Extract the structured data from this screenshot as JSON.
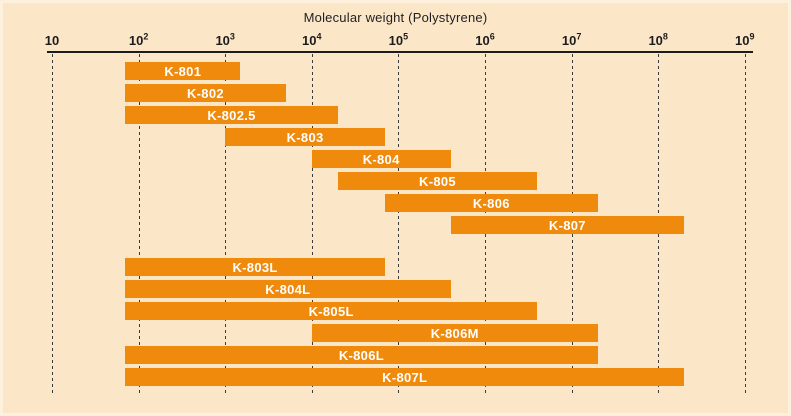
{
  "colors": {
    "background": "#fce6c8",
    "bar": "#ef8a0c",
    "bar_label": "#ffffff",
    "axis": "#1c1c1c",
    "gridline": "#3b3b3b"
  },
  "chart_data": {
    "type": "bar",
    "variant": "horizontal-range-bars",
    "title": "Molecular weight (Polystyrene)",
    "x_axis": {
      "scale": "log",
      "min": 10,
      "max": 1000000000,
      "tick_exponents": [
        1,
        2,
        3,
        4,
        5,
        6,
        7,
        8,
        9
      ],
      "tick_base": "10",
      "grid": "dashed-vertical-per-decade"
    },
    "legend": "none",
    "bars": [
      {
        "label": "K-801",
        "mw_min": 70,
        "mw_max": 1500,
        "group": 0
      },
      {
        "label": "K-802",
        "mw_min": 70,
        "mw_max": 5000,
        "group": 0
      },
      {
        "label": "K-802.5",
        "mw_min": 70,
        "mw_max": 20000,
        "group": 0
      },
      {
        "label": "K-803",
        "mw_min": 1000,
        "mw_max": 70000,
        "group": 0
      },
      {
        "label": "K-804",
        "mw_min": 10000,
        "mw_max": 400000,
        "group": 0
      },
      {
        "label": "K-805",
        "mw_min": 20000,
        "mw_max": 4000000,
        "group": 0
      },
      {
        "label": "K-806",
        "mw_min": 70000,
        "mw_max": 20000000,
        "group": 0
      },
      {
        "label": "K-807",
        "mw_min": 400000,
        "mw_max": 200000000,
        "group": 0
      },
      {
        "label": "K-803L",
        "mw_min": 70,
        "mw_max": 70000,
        "group": 1
      },
      {
        "label": "K-804L",
        "mw_min": 70,
        "mw_max": 400000,
        "group": 1
      },
      {
        "label": "K-805L",
        "mw_min": 70,
        "mw_max": 4000000,
        "group": 1
      },
      {
        "label": "K-806M",
        "mw_min": 10000,
        "mw_max": 20000000,
        "group": 1
      },
      {
        "label": "K-806L",
        "mw_min": 70,
        "mw_max": 20000000,
        "group": 1
      },
      {
        "label": "K-807L",
        "mw_min": 70,
        "mw_max": 200000000,
        "group": 1
      }
    ]
  }
}
